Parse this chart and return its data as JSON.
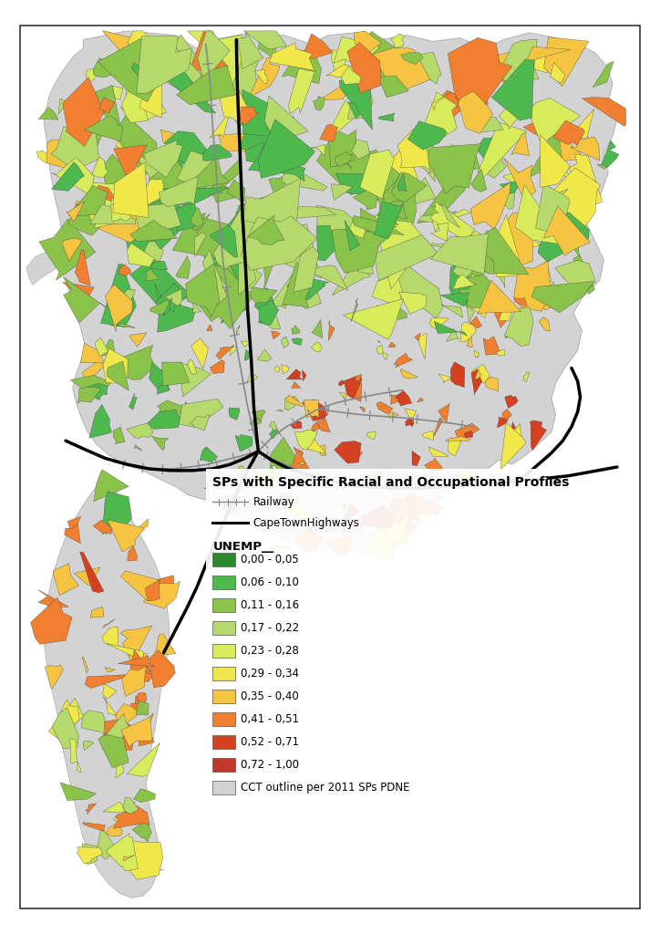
{
  "title": "SPs with Specific Racial and Occupational Profiles",
  "legend_title": "UNEMP__",
  "legend_items": [
    {
      "label": "0,00 - 0,05",
      "color": "#2a8a2a"
    },
    {
      "label": "0,06 - 0,10",
      "color": "#4db84d"
    },
    {
      "label": "0,11 - 0,16",
      "color": "#8bc34a"
    },
    {
      "label": "0,17 - 0,22",
      "color": "#b5d96b"
    },
    {
      "label": "0,23 - 0,28",
      "color": "#d8eb5a"
    },
    {
      "label": "0,29 - 0,34",
      "color": "#f0e84a"
    },
    {
      "label": "0,35 - 0,40",
      "color": "#f5c542"
    },
    {
      "label": "0,41 - 0,51",
      "color": "#f08030"
    },
    {
      "label": "0,52 - 0,71",
      "color": "#d44020"
    },
    {
      "label": "0,72 - 1,00",
      "color": "#c0392b"
    },
    {
      "label": "CCT outline per 2011 SPs PDNE",
      "color": "#d3d3d3"
    }
  ],
  "railway_label": "Railway",
  "highway_label": "CapeTownHighways",
  "background_color": "#ffffff",
  "font_size_title": 10,
  "font_size_legend": 8.5,
  "fig_width": 7.24,
  "fig_height": 10.24
}
